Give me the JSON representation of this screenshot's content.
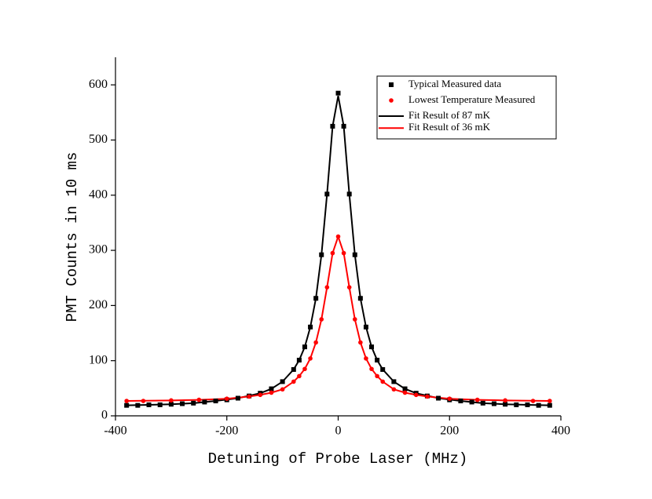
{
  "chart_data": {
    "type": "scatter",
    "x_label": "Detuning of Probe Laser (MHz)",
    "y_label": "PMT Counts in 10 ms",
    "xlim": [
      -400,
      400
    ],
    "ylim": [
      0,
      650
    ],
    "xticks": [
      -400,
      -200,
      0,
      200,
      400
    ],
    "yticks": [
      0,
      100,
      200,
      300,
      400,
      500,
      600
    ],
    "legend": "upper right",
    "series": [
      {
        "name": "Typical Measured data",
        "mode": "markers",
        "marker": "square",
        "color": "#000000",
        "x": [
          -380,
          -360,
          -340,
          -320,
          -300,
          -280,
          -260,
          -240,
          -220,
          -200,
          -180,
          -160,
          -140,
          -120,
          -100,
          -80,
          -70,
          -60,
          -50,
          -40,
          -30,
          -20,
          -10,
          0,
          10,
          20,
          30,
          40,
          50,
          60,
          70,
          80,
          100,
          120,
          140,
          160,
          180,
          200,
          220,
          240,
          260,
          280,
          300,
          320,
          340,
          360,
          380
        ],
        "values": [
          19,
          19,
          20,
          20,
          21,
          22,
          23,
          25,
          27,
          29,
          32,
          36,
          41,
          49,
          62,
          84,
          101,
          125,
          161,
          213,
          292,
          402,
          525,
          585,
          525,
          402,
          292,
          213,
          161,
          125,
          101,
          84,
          62,
          49,
          41,
          36,
          32,
          29,
          27,
          25,
          23,
          22,
          21,
          20,
          20,
          19,
          19
        ]
      },
      {
        "name": "Lowest Temperature Measured",
        "mode": "markers",
        "marker": "circle",
        "color": "#ff0000",
        "x": [
          -380,
          -350,
          -300,
          -250,
          -200,
          -160,
          -140,
          -120,
          -100,
          -80,
          -70,
          -60,
          -50,
          -40,
          -30,
          -20,
          -10,
          0,
          10,
          20,
          30,
          40,
          50,
          60,
          70,
          80,
          100,
          120,
          140,
          160,
          200,
          250,
          300,
          350,
          380
        ],
        "values": [
          27,
          27,
          28,
          29,
          31,
          35,
          38,
          42,
          48,
          62,
          72,
          85,
          104,
          133,
          175,
          233,
          295,
          325,
          295,
          233,
          175,
          133,
          104,
          85,
          72,
          62,
          48,
          42,
          38,
          35,
          31,
          29,
          28,
          27,
          27
        ]
      },
      {
        "name": "Fit Result of 87 mK",
        "mode": "line",
        "color": "#000000",
        "x": [
          -380,
          -340,
          -300,
          -260,
          -220,
          -180,
          -140,
          -120,
          -100,
          -80,
          -70,
          -60,
          -50,
          -40,
          -30,
          -20,
          -10,
          0,
          10,
          20,
          30,
          40,
          50,
          60,
          70,
          80,
          100,
          120,
          140,
          180,
          220,
          260,
          300,
          340,
          380
        ],
        "values": [
          19,
          20,
          21,
          23,
          27,
          32,
          41,
          49,
          62,
          84,
          101,
          125,
          161,
          213,
          292,
          402,
          525,
          580,
          525,
          402,
          292,
          213,
          161,
          125,
          101,
          84,
          62,
          49,
          41,
          32,
          27,
          23,
          21,
          20,
          19
        ]
      },
      {
        "name": "Fit Result of 36 mK",
        "mode": "line",
        "color": "#ff0000",
        "x": [
          -380,
          -300,
          -250,
          -200,
          -160,
          -140,
          -120,
          -100,
          -80,
          -70,
          -60,
          -50,
          -40,
          -30,
          -20,
          -10,
          0,
          10,
          20,
          30,
          40,
          50,
          60,
          70,
          80,
          100,
          120,
          140,
          160,
          200,
          250,
          300,
          380
        ],
        "values": [
          27,
          28,
          29,
          31,
          35,
          38,
          42,
          48,
          62,
          72,
          85,
          104,
          133,
          175,
          233,
          295,
          325,
          295,
          233,
          175,
          133,
          104,
          85,
          72,
          62,
          48,
          42,
          38,
          35,
          31,
          29,
          28,
          27
        ]
      }
    ]
  }
}
